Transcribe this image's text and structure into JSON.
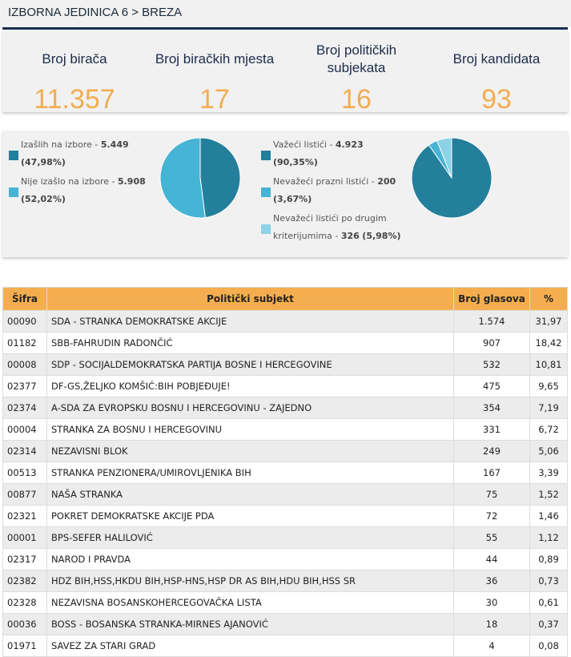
{
  "breadcrumb": "IZBORNA JEDINICA 6 > BREZA",
  "stats": [
    {
      "label": "Broj birača",
      "value": "11.357"
    },
    {
      "label": "Broj biračkih mjesta",
      "value": "17"
    },
    {
      "label": "Broj političkih subjekata",
      "value": "16"
    },
    {
      "label": "Broj kandidata",
      "value": "93"
    }
  ],
  "turnout": {
    "items": [
      {
        "label": "Izašlih na izbore - ",
        "value": "5.449",
        "pct": "(47,98%)",
        "share": 47.98,
        "color": "#237f9c"
      },
      {
        "label": "Nije izašlo na izbore - ",
        "value": "5.908",
        "pct": "(52,02%)",
        "share": 52.02,
        "color": "#46b4d4"
      }
    ]
  },
  "ballots": {
    "items": [
      {
        "label": "Važeći listići - ",
        "value": "4.923",
        "pct": "(90,35%)",
        "share": 90.35,
        "color": "#237f9c"
      },
      {
        "label": "Nevažeći prazni listići - ",
        "value": "200",
        "pct": "(3,67%)",
        "share": 3.67,
        "color": "#46b4d4"
      },
      {
        "label": "Nevažeći listići po drugim kriterijumima - ",
        "value": "326",
        "pct": "(5,98%)",
        "share": 5.98,
        "color": "#8dd2e6"
      }
    ]
  },
  "table": {
    "headers": [
      "Šifra",
      "Politički subjekt",
      "Broj glasova",
      "%"
    ],
    "rows": [
      [
        "00090",
        "SDA - STRANKA DEMOKRATSKE AKCIJE",
        "1.574",
        "31,97"
      ],
      [
        "01182",
        "SBB-FAHRUDIN RADONČIĆ",
        "907",
        "18,42"
      ],
      [
        "00008",
        "SDP - SOCIJALDEMOKRATSKA PARTIJA BOSNE I HERCEGOVINE",
        "532",
        "10,81"
      ],
      [
        "02377",
        "DF-GS,ŽELJKO KOMŠIĆ:BIH POBJEĐUJE!",
        "475",
        "9,65"
      ],
      [
        "02374",
        "A-SDA ZA EVROPSKU BOSNU I HERCEGOVINU - ZAJEDNO",
        "354",
        "7,19"
      ],
      [
        "00004",
        "STRANKA ZA BOSNU I HERCEGOVINU",
        "331",
        "6,72"
      ],
      [
        "02314",
        "NEZAVISNI BLOK",
        "249",
        "5,06"
      ],
      [
        "00513",
        "STRANKA PENZIONERA/UMIROVLJENIKA BIH",
        "167",
        "3,39"
      ],
      [
        "00877",
        "NAŠA STRANKA",
        "75",
        "1,52"
      ],
      [
        "02321",
        "POKRET DEMOKRATSKE AKCIJE PDA",
        "72",
        "1,46"
      ],
      [
        "00001",
        "BPS-SEFER HALILOVIĆ",
        "55",
        "1,12"
      ],
      [
        "02317",
        "NAROD I PRAVDA",
        "44",
        "0,89"
      ],
      [
        "02382",
        "HDZ BIH,HSS,HKDU BIH,HSP-HNS,HSP DR AS BIH,HDU BIH,HSS SR",
        "36",
        "0,73"
      ],
      [
        "02328",
        "NEZAVISNA BOSANSKOHERCEGOVAČKA LISTA",
        "30",
        "0,61"
      ],
      [
        "00036",
        "BOSS - BOSANSKA STRANKA-MIRNES AJANOVIĆ",
        "18",
        "0,37"
      ],
      [
        "01971",
        "SAVEZ ZA STARI GRAD",
        "4",
        "0,08"
      ]
    ]
  }
}
